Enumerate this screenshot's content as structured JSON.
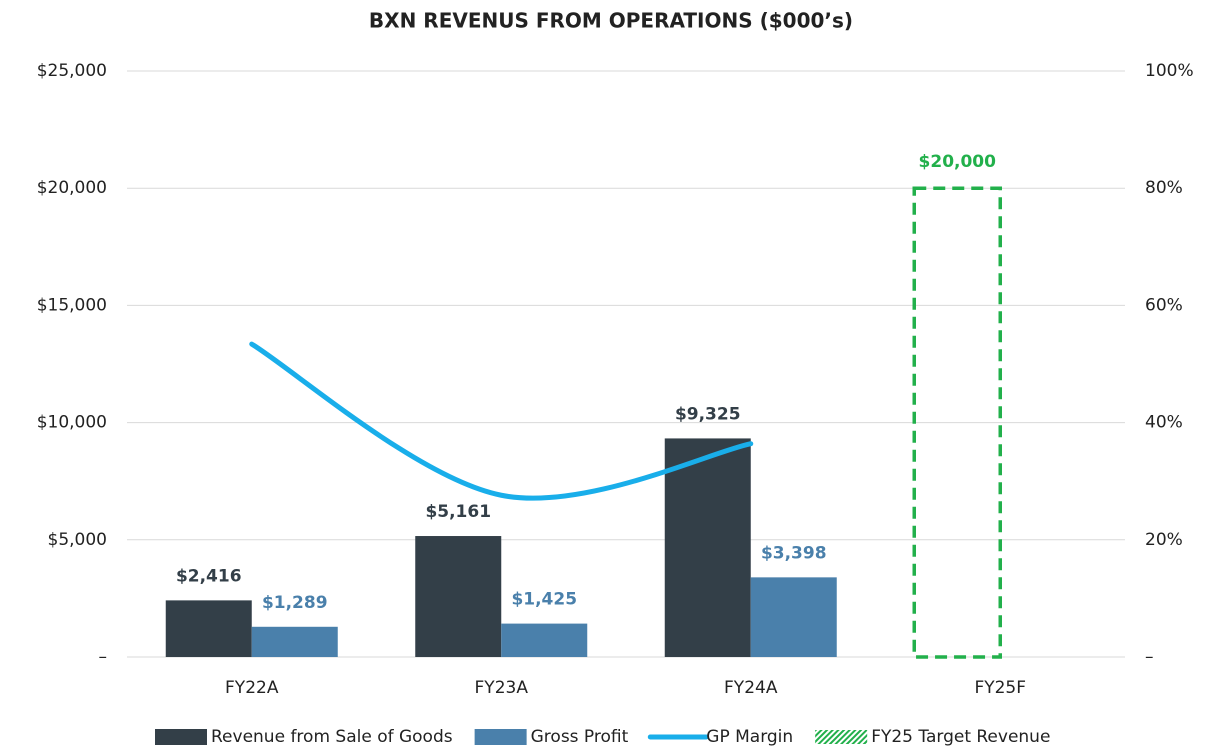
{
  "chart_data": {
    "type": "bar",
    "title": "BXN REVENUS FROM OPERATIONS ($000’s)",
    "categories": [
      "FY22A",
      "FY23A",
      "FY24A",
      "FY25F"
    ],
    "series": [
      {
        "name": "Revenue from Sale of Goods",
        "type": "bar",
        "color": "#333f48",
        "values": [
          2416,
          5161,
          9325,
          null
        ],
        "value_labels": [
          "$2,416",
          "$5,161",
          "$9,325",
          null
        ]
      },
      {
        "name": "Gross Profit",
        "type": "bar",
        "color": "#4a80ab",
        "values": [
          1289,
          1425,
          3398,
          null
        ],
        "value_labels": [
          "$1,289",
          "$1,425",
          "$3,398",
          null
        ]
      },
      {
        "name": "GP Margin",
        "type": "line",
        "axis": "y2",
        "color": "#19aeea",
        "values": [
          53.4,
          27.6,
          36.4,
          null
        ]
      },
      {
        "name": "FY25 Target Revenue",
        "type": "target",
        "color": "#22b04b",
        "values": [
          null,
          null,
          null,
          20000
        ],
        "value_labels": [
          null,
          null,
          null,
          "$20,000"
        ]
      }
    ],
    "ylim": [
      0,
      25000
    ],
    "yticks": [
      {
        "value": 0,
        "label": "–"
      },
      {
        "value": 5000,
        "label": "$5,000"
      },
      {
        "value": 10000,
        "label": "$10,000"
      },
      {
        "value": 15000,
        "label": "$15,000"
      },
      {
        "value": 20000,
        "label": "$20,000"
      },
      {
        "value": 25000,
        "label": "$25,000"
      }
    ],
    "y2lim": [
      0,
      100
    ],
    "y2ticks": [
      {
        "value": 0,
        "label": "–"
      },
      {
        "value": 20,
        "label": "20%"
      },
      {
        "value": 40,
        "label": "40%"
      },
      {
        "value": 60,
        "label": "60%"
      },
      {
        "value": 80,
        "label": "80%"
      },
      {
        "value": 100,
        "label": "100%"
      }
    ],
    "grid": true,
    "legend": "bottom"
  }
}
